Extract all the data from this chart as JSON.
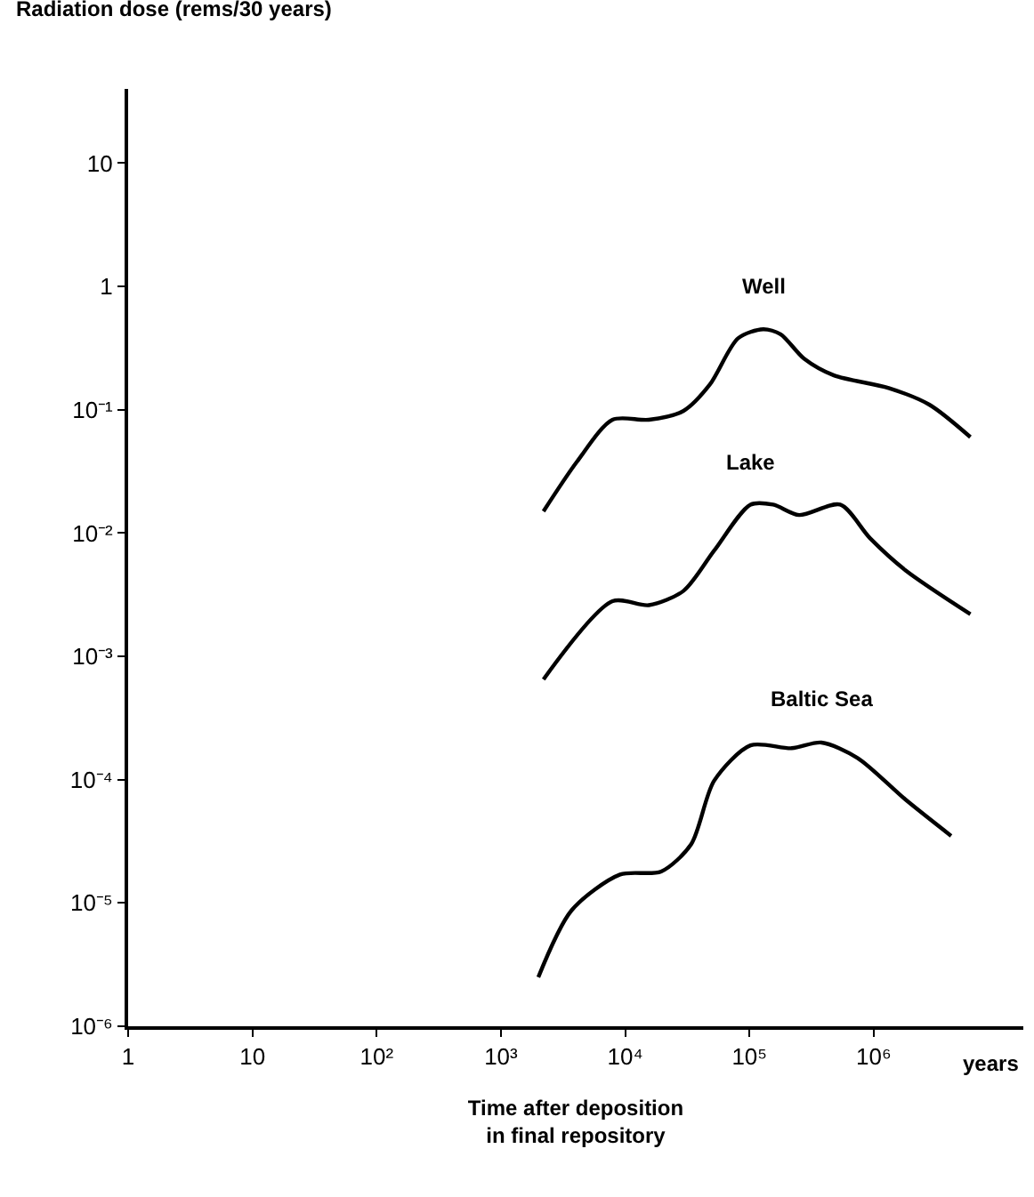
{
  "chart_data": {
    "type": "line",
    "ylabel": "Radiation dose (rems/30 years)",
    "xlabel": "Time after deposition\nin final repository",
    "annotations": [
      "years"
    ],
    "log": "xy",
    "grid": false,
    "legend": false,
    "marker": "none",
    "line_style": "solid",
    "xlim": [
      1,
      16000000
    ],
    "ylim": [
      1e-06,
      40
    ],
    "xticks": [
      1,
      10,
      {
        "value": 100,
        "label": "10²"
      },
      {
        "value": 1000,
        "label": "10³"
      },
      {
        "value": 10000,
        "label": "10⁴"
      },
      {
        "value": 100000,
        "label": "10⁵"
      },
      {
        "value": 1000000,
        "label": "10⁶"
      }
    ],
    "yticks": [
      {
        "value": 1e-06,
        "label": "10⁻⁶"
      },
      {
        "value": 1e-05,
        "label": "10⁻⁵"
      },
      {
        "value": 0.0001,
        "label": "10⁻⁴"
      },
      {
        "value": 0.001,
        "label": "10⁻³"
      },
      {
        "value": 0.01,
        "label": "10⁻²"
      },
      {
        "value": 0.1,
        "label": "10⁻¹"
      },
      1,
      10
    ],
    "series": [
      {
        "name": "Well",
        "color": "#000000",
        "x": [
          2200,
          4100,
          7900,
          15500,
          29500,
          48000,
          81000,
          129000,
          178000,
          275000,
          479000,
          1320000,
          2800000,
          6000000
        ],
        "values": [
          0.015,
          0.038,
          0.083,
          0.083,
          0.098,
          0.16,
          0.38,
          0.45,
          0.41,
          0.26,
          0.19,
          0.15,
          0.11,
          0.06
        ]
      },
      {
        "name": "Lake",
        "color": "#000000",
        "x": [
          2200,
          7900,
          15500,
          29500,
          52000,
          102000,
          155000,
          251000,
          537000,
          933000,
          1800000,
          6000000
        ],
        "values": [
          0.00065,
          0.0028,
          0.0026,
          0.0034,
          0.0072,
          0.017,
          0.017,
          0.014,
          0.017,
          0.0091,
          0.005,
          0.0022
        ]
      },
      {
        "name": "Baltic Sea",
        "color": "#000000",
        "x": [
          2000,
          3700,
          9100,
          19500,
          34000,
          52000,
          102000,
          219000,
          380000,
          741000,
          1800000,
          4200000
        ],
        "values": [
          2.5e-06,
          8.7e-06,
          1.7e-05,
          1.8e-05,
          3e-05,
          9.8e-05,
          0.00019,
          0.00018,
          0.0002,
          0.00015,
          6.9e-05,
          3.5e-05
        ]
      }
    ]
  }
}
